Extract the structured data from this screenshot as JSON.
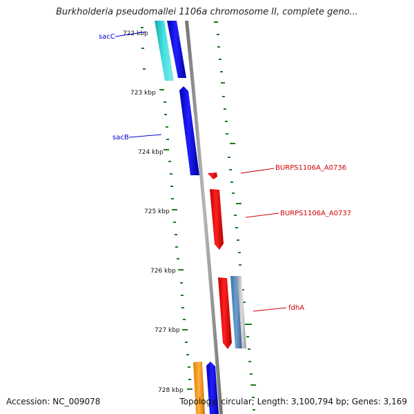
{
  "title": "Burkholderia pseudomallei 1106a chromosome II, complete geno...",
  "footer": {
    "accession": "Accession: NC_009078",
    "summary": "Topology: circular; Length: 3,100,794 bp; Genes: 3,169"
  },
  "ticks": [
    "722 kbp",
    "723 kbp",
    "724 kbp",
    "725 kbp",
    "726 kbp",
    "727 kbp",
    "728 kbp"
  ],
  "gene_labels": [
    {
      "text": "sacC",
      "color": "#0000cc"
    },
    {
      "text": "sacB",
      "color": "#0000cc"
    },
    {
      "text": "BURPS1106A_A0736",
      "color": "#cc0000"
    },
    {
      "text": "BURPS1106A_A0737",
      "color": "#cc0000"
    },
    {
      "text": "fdhA",
      "color": "#cc0000"
    }
  ],
  "colors": {
    "backbone": "#8a8a8a",
    "tick_marks": "#1a7a1a",
    "forward_strand": "#0000ee",
    "reverse_strand": "#ee0000",
    "teal_gene": "#22c4c4",
    "steel_gene": "#4a7fb0",
    "orange_gene": "#f59a10"
  }
}
